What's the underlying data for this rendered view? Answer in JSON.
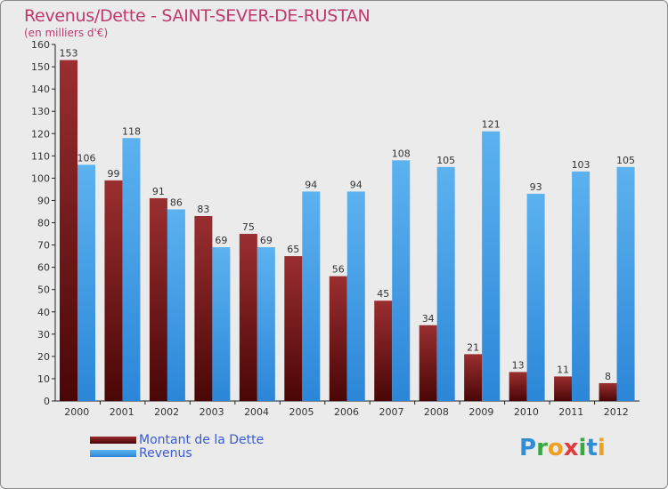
{
  "chart_data": {
    "type": "bar",
    "title": "Revenus/Dette - SAINT-SEVER-DE-RUSTAN",
    "subtitle": "(en milliers d'€)",
    "categories": [
      "2000",
      "2001",
      "2002",
      "2003",
      "2004",
      "2005",
      "2006",
      "2007",
      "2008",
      "2009",
      "2010",
      "2011",
      "2012"
    ],
    "series": [
      {
        "name": "Montant de la Dette",
        "color": "#8b1a1a",
        "values": [
          153,
          99,
          91,
          83,
          75,
          65,
          56,
          45,
          34,
          21,
          13,
          11,
          8
        ]
      },
      {
        "name": "Revenus",
        "color": "#3d9ae8",
        "values": [
          106,
          118,
          86,
          69,
          69,
          94,
          94,
          108,
          105,
          121,
          93,
          103,
          105
        ]
      }
    ],
    "ylim": [
      0,
      160
    ],
    "yticks": [
      0,
      10,
      20,
      30,
      40,
      50,
      60,
      70,
      80,
      90,
      100,
      110,
      120,
      130,
      140,
      150,
      160
    ],
    "grid": false,
    "legend": "bottom-left"
  },
  "legend": {
    "items": [
      {
        "label": "Montant de la Dette",
        "color": "#8b1a1a"
      },
      {
        "label": "Revenus",
        "color": "#3d9ae8"
      }
    ]
  },
  "logo": {
    "letters": [
      "P",
      "r",
      "o",
      "x",
      "i",
      "t",
      "i"
    ],
    "colors": [
      "#2e8fd6",
      "#3aa840",
      "#f0a020",
      "#e03a3a",
      "#3aa840",
      "#2e8fd6",
      "#f0a020"
    ]
  }
}
